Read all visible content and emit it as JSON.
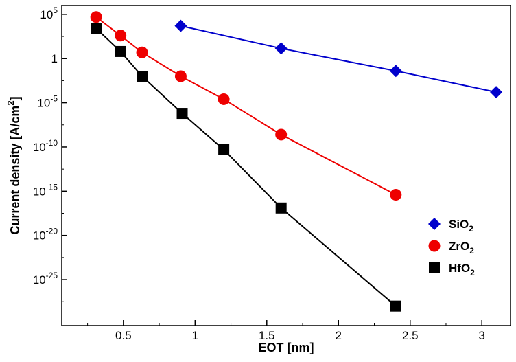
{
  "chart_data": {
    "type": "scatter",
    "xlabel": "EOT  [nm]",
    "ylabel": "Current density  [A/cm",
    "ylabel_superscript": "2",
    "ylabel_suffix": "]",
    "xlim": [
      0.07,
      3.2
    ],
    "ylim": [
      -30.2,
      6.0
    ],
    "yscale": "log",
    "grid": false,
    "legend_position": "bottom-right",
    "x_ticks": [
      0.5,
      1,
      1.5,
      2,
      2.5,
      3
    ],
    "x_tick_labels": [
      "0.5",
      "1",
      "1.5",
      "2",
      "2.5",
      "3"
    ],
    "y_ticks": [
      5,
      0,
      -5,
      -10,
      -15,
      -20,
      -25
    ],
    "y_tick_labels": [
      {
        "base": "10",
        "exp": "5"
      },
      {
        "base": "1",
        "exp": ""
      },
      {
        "base": "10",
        "exp": "-5"
      },
      {
        "base": "10",
        "exp": "-10"
      },
      {
        "base": "10",
        "exp": "-15"
      },
      {
        "base": "10",
        "exp": "-20"
      },
      {
        "base": "10",
        "exp": "-25"
      }
    ],
    "series": [
      {
        "name": "SiO2",
        "label_main": "SiO",
        "label_sub": "2",
        "color": "#0000cc",
        "marker": "diamond",
        "x": [
          0.9,
          1.6,
          2.4,
          3.1
        ],
        "log10_y": [
          3.7,
          1.15,
          -1.4,
          -3.8
        ]
      },
      {
        "name": "ZrO2",
        "label_main": "ZrO",
        "label_sub": "2",
        "color": "#ee0000",
        "marker": "circle",
        "x": [
          0.31,
          0.48,
          0.63,
          0.9,
          1.2,
          1.6,
          2.4
        ],
        "log10_y": [
          4.7,
          2.6,
          0.7,
          -2.0,
          -4.6,
          -8.6,
          -15.4
        ]
      },
      {
        "name": "HfO2",
        "label_main": "HfO",
        "label_sub": "2",
        "color": "#000000",
        "marker": "square",
        "x": [
          0.31,
          0.48,
          0.63,
          0.91,
          1.2,
          1.6,
          2.4
        ],
        "log10_y": [
          3.4,
          0.8,
          -2.0,
          -6.2,
          -10.3,
          -16.9,
          -28.0
        ]
      }
    ]
  }
}
